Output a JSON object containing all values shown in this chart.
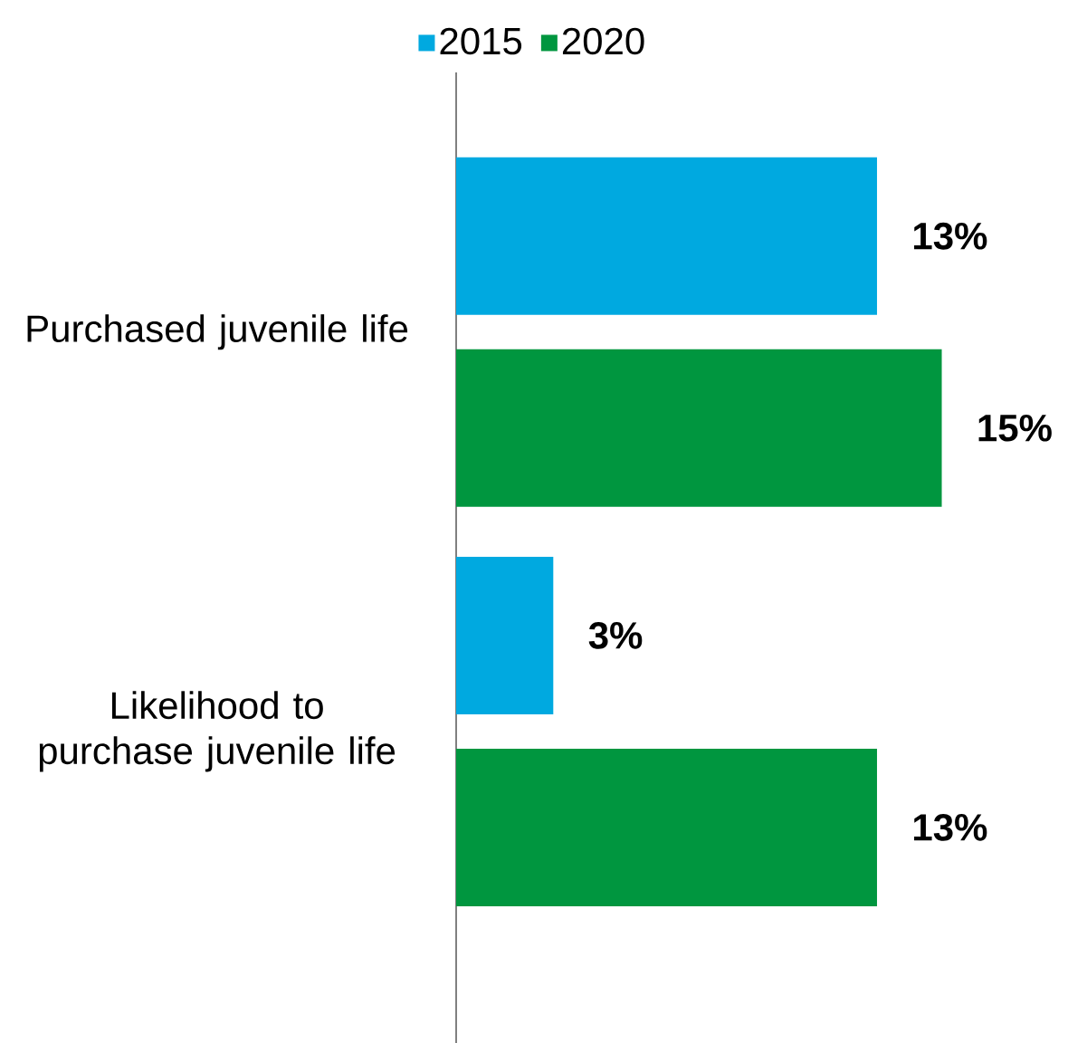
{
  "chart_data": {
    "type": "bar",
    "orientation": "horizontal",
    "categories": [
      "Purchased juvenile life",
      "Likelihood to purchase juvenile life"
    ],
    "series": [
      {
        "name": "2015",
        "color": "#00a9e0",
        "values": [
          13,
          3
        ],
        "value_labels": [
          "13%",
          "3%"
        ]
      },
      {
        "name": "2020",
        "color": "#00963f",
        "values": [
          15,
          13
        ],
        "value_labels": [
          "15%",
          "13%"
        ]
      }
    ],
    "legend": "top"
  }
}
